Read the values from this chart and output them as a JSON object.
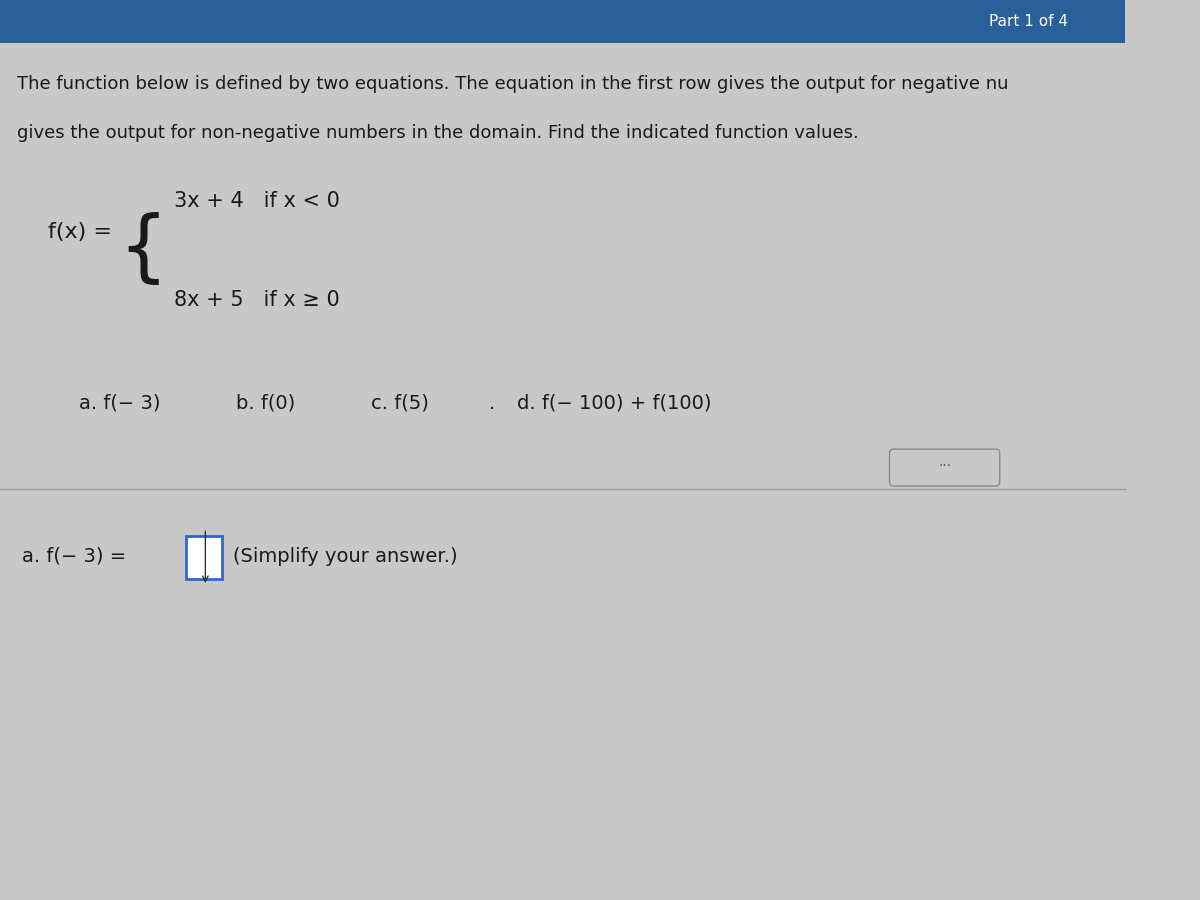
{
  "bg_color": "#c8c8c8",
  "header_bg": "#2a6099",
  "header_text": "Part 1 of 4",
  "description_line1": "The function below is defined by two equations. The equation in the first row gives the output for negative nu",
  "description_line2": "gives the output for non-negative numbers in the domain. Find the indicated function values.",
  "fx_label": "f(x) =",
  "eq1": "3x + 4   if x < 0",
  "eq2": "8x + 5   if x ≥ 0",
  "answer_hint": "(Simplify your answer.)",
  "separator_color": "#999999",
  "text_color": "#1a1a1a",
  "font_size_desc": 13,
  "font_size_eq": 15,
  "font_size_parts": 14,
  "font_size_answer": 14
}
